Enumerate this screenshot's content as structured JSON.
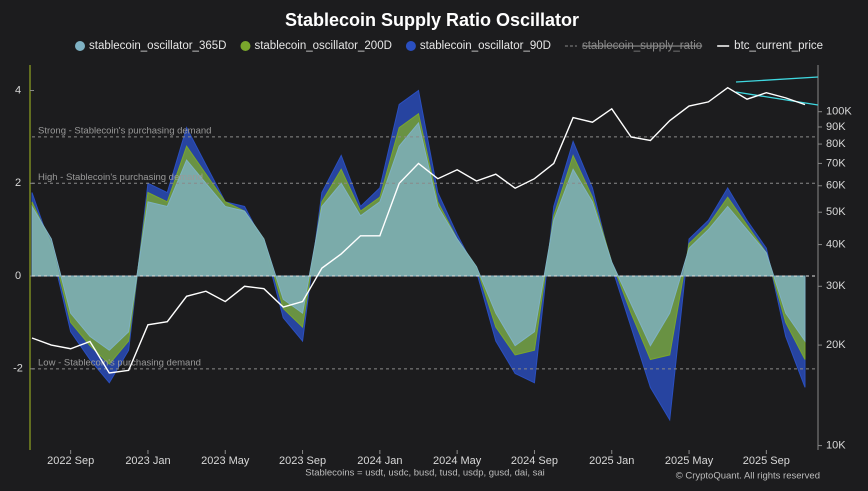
{
  "chart_data": {
    "type": "area",
    "title": "Stablecoin Supply Ratio Oscillator",
    "footnote": "Stablecoins = usdt, usdc, busd, tusd, usdp, gusd, dai, sai",
    "credit": "© CryptoQuant. All rights reserved",
    "x": [
      "2022-07",
      "2022-08",
      "2022-09",
      "2022-10",
      "2022-11",
      "2022-12",
      "2023-01",
      "2023-02",
      "2023-03",
      "2023-04",
      "2023-05",
      "2023-06",
      "2023-07",
      "2023-08",
      "2023-09",
      "2023-10",
      "2023-11",
      "2023-12",
      "2024-01",
      "2024-02",
      "2024-03",
      "2024-04",
      "2024-05",
      "2024-06",
      "2024-07",
      "2024-08",
      "2024-09",
      "2024-10",
      "2024-11",
      "2024-12",
      "2025-01",
      "2025-02",
      "2025-03",
      "2025-04",
      "2025-05",
      "2025-06",
      "2025-07",
      "2025-08",
      "2025-09",
      "2025-10",
      "2025-11"
    ],
    "xticks": [
      {
        "value": "2022-09",
        "label": "2022 Sep"
      },
      {
        "value": "2023-01",
        "label": "2023 Jan"
      },
      {
        "value": "2023-05",
        "label": "2023 May"
      },
      {
        "value": "2023-09",
        "label": "2023 Sep"
      },
      {
        "value": "2024-01",
        "label": "2024 Jan"
      },
      {
        "value": "2024-05",
        "label": "2024 May"
      },
      {
        "value": "2024-09",
        "label": "2024 Sep"
      },
      {
        "value": "2025-01",
        "label": "2025 Jan"
      },
      {
        "value": "2025-05",
        "label": "2025 May"
      },
      {
        "value": "2025-09",
        "label": "2025 Sep"
      }
    ],
    "ylim": [
      -3.75,
      4.55
    ],
    "yticks": [
      -2,
      0,
      2,
      4
    ],
    "y2lim": [
      9700,
      138000
    ],
    "y2_log": true,
    "y2ticks": [
      {
        "value": 10000,
        "label": "10K"
      },
      {
        "value": 20000,
        "label": "20K"
      },
      {
        "value": 30000,
        "label": "30K"
      },
      {
        "value": 40000,
        "label": "40K"
      },
      {
        "value": 50000,
        "label": "50K"
      },
      {
        "value": 60000,
        "label": "60K"
      },
      {
        "value": 70000,
        "label": "70K"
      },
      {
        "value": 80000,
        "label": "80K"
      },
      {
        "value": 90000,
        "label": "90K"
      },
      {
        "value": 100000,
        "label": "100K"
      }
    ],
    "reference_lines": [
      {
        "value": 3,
        "label": "Strong - Stablecoin's purchasing demand"
      },
      {
        "value": 2,
        "label": "High - Stablecoin's purchasing demand"
      },
      {
        "value": -2,
        "label": "Low - Stablecoin's purchasing demand"
      }
    ],
    "hidden_legend": "stablecoin_supply_ratio",
    "series": [
      {
        "name": "stablecoin_oscillator_90D",
        "color": "#2a4fc0",
        "values": [
          1.8,
          0.6,
          -1.2,
          -1.8,
          -2.3,
          -1.6,
          2.0,
          1.8,
          3.2,
          2.4,
          1.6,
          1.5,
          0.7,
          -0.9,
          -1.4,
          1.8,
          2.6,
          1.5,
          1.9,
          3.7,
          4.0,
          1.8,
          0.9,
          0.1,
          -1.4,
          -2.1,
          -2.3,
          1.5,
          2.9,
          1.9,
          0.2,
          -1.1,
          -2.4,
          -3.1,
          0.8,
          1.2,
          1.9,
          1.2,
          0.6,
          -1.3,
          -2.4
        ]
      },
      {
        "name": "stablecoin_oscillator_200D",
        "color": "#7aa62c",
        "values": [
          1.6,
          0.7,
          -1.0,
          -1.5,
          -1.9,
          -1.4,
          1.8,
          1.6,
          2.8,
          2.2,
          1.6,
          1.4,
          0.8,
          -0.7,
          -1.1,
          1.6,
          2.3,
          1.4,
          1.7,
          3.2,
          3.5,
          1.6,
          0.8,
          0.2,
          -1.1,
          -1.7,
          -1.6,
          1.3,
          2.6,
          1.7,
          0.3,
          -0.8,
          -1.8,
          -1.7,
          0.7,
          1.1,
          1.7,
          1.1,
          0.5,
          -1.0,
          -1.8
        ]
      },
      {
        "name": "stablecoin_oscillator_365D",
        "color": "#7fb2c4",
        "values": [
          1.5,
          0.8,
          -0.8,
          -1.3,
          -1.6,
          -1.2,
          1.6,
          1.5,
          2.5,
          2.0,
          1.5,
          1.4,
          0.8,
          -0.5,
          -0.8,
          1.5,
          2.0,
          1.3,
          1.6,
          2.8,
          3.3,
          1.5,
          0.8,
          0.2,
          -0.8,
          -1.5,
          -1.2,
          1.2,
          2.3,
          1.6,
          0.3,
          -0.6,
          -1.5,
          -0.8,
          0.6,
          1.0,
          1.5,
          1.0,
          0.5,
          -0.8,
          -1.4
        ]
      },
      {
        "name": "btc_current_price",
        "color": "#ffffff",
        "axis": "y2",
        "values": [
          21000,
          20000,
          19500,
          20500,
          16500,
          16800,
          23000,
          23500,
          28000,
          29000,
          27000,
          30000,
          29500,
          26000,
          27000,
          34000,
          37500,
          42500,
          42500,
          61000,
          70000,
          63000,
          67000,
          62000,
          65000,
          59000,
          63000,
          70000,
          96000,
          93000,
          102000,
          84000,
          82000,
          94000,
          104000,
          107000,
          118000,
          109000,
          114000,
          110000,
          105000
        ]
      }
    ]
  }
}
